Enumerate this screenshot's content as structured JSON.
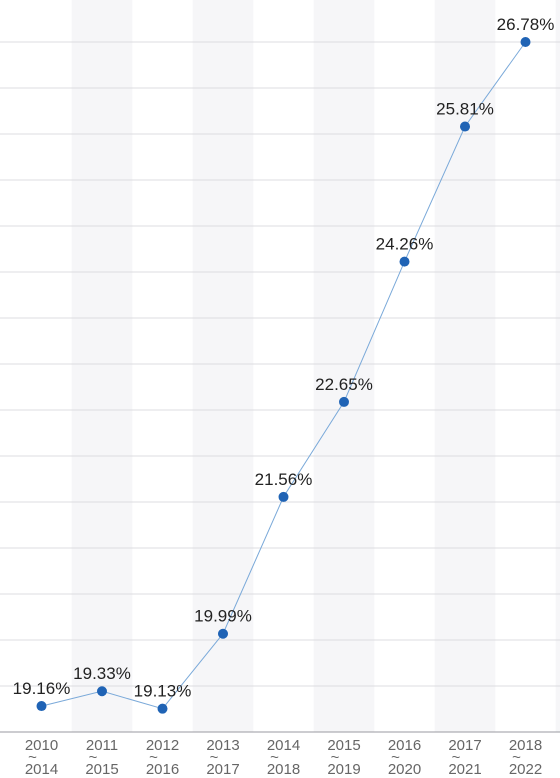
{
  "chart_data": {
    "type": "line",
    "title": "",
    "xlabel": "",
    "ylabel": "",
    "categories": [
      [
        "2010",
        "2014"
      ],
      [
        "2011",
        "2015"
      ],
      [
        "2012",
        "2016"
      ],
      [
        "2013",
        "2017"
      ],
      [
        "2014",
        "2018"
      ],
      [
        "2015",
        "2019"
      ],
      [
        "2016",
        "2020"
      ],
      [
        "2017",
        "2021"
      ],
      [
        "2018",
        "2022"
      ]
    ],
    "category_separator": "~",
    "series": [
      {
        "values": [
          19.16,
          19.33,
          19.13,
          19.99,
          21.56,
          22.65,
          24.26,
          25.81,
          26.78
        ],
        "labels": [
          "19.16%",
          "19.33%",
          "19.13%",
          "19.99%",
          "21.56%",
          "22.65%",
          "24.26%",
          "25.81%",
          "26.78%"
        ]
      }
    ],
    "ylim": [
      19.0,
      27.0
    ],
    "grid": true,
    "legend": "none",
    "colors": {
      "line": "#7aa9d9",
      "point": "#1f63b5",
      "band": "#f6f6f8",
      "grid": "#dcdce0"
    }
  }
}
